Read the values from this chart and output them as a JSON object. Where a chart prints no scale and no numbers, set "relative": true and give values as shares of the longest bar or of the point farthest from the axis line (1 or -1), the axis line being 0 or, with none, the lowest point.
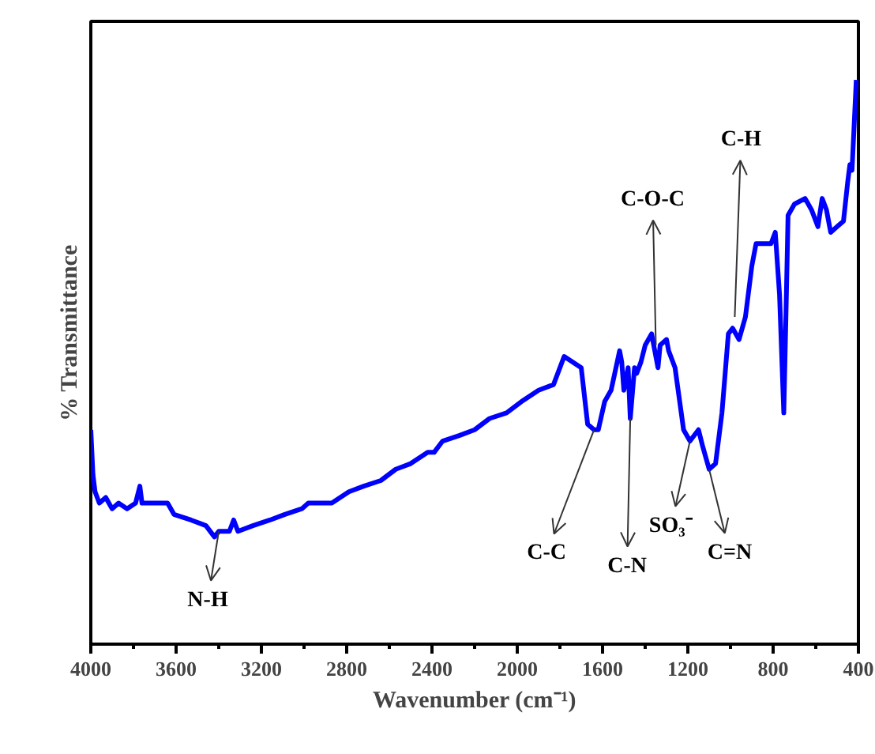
{
  "chart_data": {
    "type": "line",
    "relative": true,
    "xlabel": "Wavenumber (cm⁻¹)",
    "ylabel": "% Transmittance",
    "xlim": [
      4000,
      400
    ],
    "xticks": [
      4000,
      3600,
      3200,
      2800,
      2400,
      2000,
      1600,
      1200,
      800,
      400
    ],
    "grid": false,
    "marker": "none",
    "line_style": "solid",
    "x": [
      4000,
      3990,
      3980,
      3960,
      3930,
      3900,
      3870,
      3830,
      3790,
      3770,
      3760,
      3680,
      3640,
      3610,
      3530,
      3460,
      3420,
      3400,
      3350,
      3330,
      3310,
      3240,
      3160,
      3090,
      3010,
      2980,
      2940,
      2870,
      2790,
      2720,
      2640,
      2570,
      2500,
      2420,
      2390,
      2350,
      2270,
      2200,
      2130,
      2050,
      1980,
      1900,
      1830,
      1780,
      1700,
      1670,
      1640,
      1620,
      1590,
      1560,
      1520,
      1510,
      1500,
      1480,
      1470,
      1450,
      1440,
      1420,
      1400,
      1370,
      1360,
      1340,
      1330,
      1300,
      1290,
      1260,
      1220,
      1190,
      1150,
      1130,
      1100,
      1070,
      1040,
      1010,
      990,
      960,
      930,
      900,
      880,
      840,
      810,
      790,
      770,
      750,
      740,
      730,
      700,
      650,
      620,
      590,
      570,
      550,
      530,
      500,
      470,
      450,
      440,
      430,
      410
    ],
    "series": [
      {
        "color": "#0000ff",
        "values": [
          0.38,
          0.3,
          0.27,
          0.25,
          0.26,
          0.24,
          0.25,
          0.24,
          0.25,
          0.28,
          0.25,
          0.25,
          0.25,
          0.23,
          0.22,
          0.21,
          0.19,
          0.2,
          0.2,
          0.22,
          0.2,
          0.21,
          0.22,
          0.23,
          0.24,
          0.25,
          0.25,
          0.25,
          0.27,
          0.28,
          0.29,
          0.31,
          0.32,
          0.34,
          0.34,
          0.36,
          0.37,
          0.38,
          0.4,
          0.41,
          0.43,
          0.45,
          0.46,
          0.51,
          0.49,
          0.39,
          0.38,
          0.38,
          0.43,
          0.45,
          0.52,
          0.5,
          0.45,
          0.49,
          0.4,
          0.49,
          0.48,
          0.5,
          0.53,
          0.55,
          0.53,
          0.49,
          0.53,
          0.54,
          0.52,
          0.49,
          0.38,
          0.36,
          0.38,
          0.35,
          0.31,
          0.32,
          0.41,
          0.55,
          0.56,
          0.54,
          0.58,
          0.67,
          0.71,
          0.71,
          0.71,
          0.73,
          0.62,
          0.41,
          0.58,
          0.76,
          0.78,
          0.79,
          0.77,
          0.74,
          0.79,
          0.77,
          0.73,
          0.74,
          0.75,
          0.82,
          0.85,
          0.84,
          1.0
        ]
      }
    ],
    "annotations": [
      {
        "text": "N-H",
        "x": 3400,
        "y": 0.2
      },
      {
        "text": "C-C",
        "x": 1640,
        "y": 0.38
      },
      {
        "text": "C-N",
        "x": 1470,
        "y": 0.4
      },
      {
        "text": "SO₃⁻",
        "x": 1190,
        "y": 0.36
      },
      {
        "text": "C=N",
        "x": 1100,
        "y": 0.31
      },
      {
        "text": "C-O-C",
        "x": 1350,
        "y": 0.53
      },
      {
        "text": "C-H",
        "x": 980,
        "y": 0.58
      }
    ]
  }
}
